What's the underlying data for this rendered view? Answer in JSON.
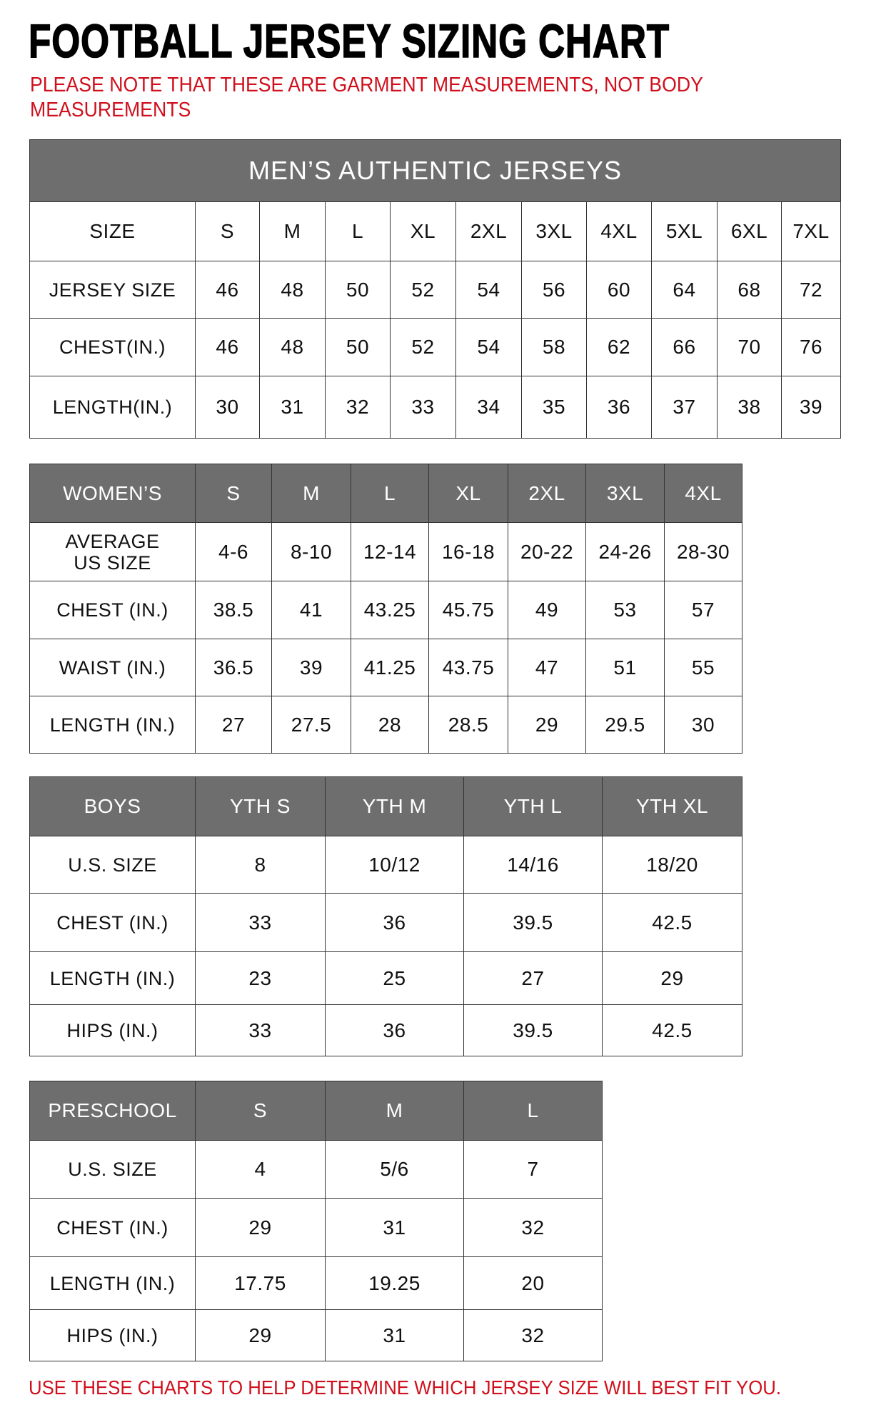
{
  "title": "FOOTBALL JERSEY SIZING CHART",
  "note": "PLEASE NOTE THAT THESE ARE GARMENT MEASUREMENTS, NOT BODY MEASUREMENTS",
  "footer": "USE THESE CHARTS TO HELP DETERMINE WHICH JERSEY SIZE WILL BEST FIT YOU.",
  "colors": {
    "header_gray": "#6e6e6e",
    "note_red": "#d0101c"
  },
  "mens": {
    "banner": "MEN’S AUTHENTIC JERSEYS",
    "header": [
      "SIZE",
      "S",
      "M",
      "L",
      "XL",
      "2XL",
      "3XL",
      "4XL",
      "5XL",
      "6XL",
      "7XL"
    ],
    "rows": [
      [
        "JERSEY SIZE",
        "46",
        "48",
        "50",
        "52",
        "54",
        "56",
        "60",
        "64",
        "68",
        "72"
      ],
      [
        "CHEST(IN.)",
        "46",
        "48",
        "50",
        "52",
        "54",
        "58",
        "62",
        "66",
        "70",
        "76"
      ],
      [
        "LENGTH(IN.)",
        "30",
        "31",
        "32",
        "33",
        "34",
        "35",
        "36",
        "37",
        "38",
        "39"
      ]
    ]
  },
  "womens": {
    "header": [
      "WOMEN’S",
      "S",
      "M",
      "L",
      "XL",
      "2XL",
      "3XL",
      "4XL"
    ],
    "rows": [
      [
        "AVERAGE US SIZE",
        "4-6",
        "8-10",
        "12-14",
        "16-18",
        "20-22",
        "24-26",
        "28-30"
      ],
      [
        "CHEST (IN.)",
        "38.5",
        "41",
        "43.25",
        "45.75",
        "49",
        "53",
        "57"
      ],
      [
        "WAIST (IN.)",
        "36.5",
        "39",
        "41.25",
        "43.75",
        "47",
        "51",
        "55"
      ],
      [
        "LENGTH (IN.)",
        "27",
        "27.5",
        "28",
        "28.5",
        "29",
        "29.5",
        "30"
      ]
    ]
  },
  "boys": {
    "header": [
      "BOYS",
      "YTH S",
      "YTH M",
      "YTH L",
      "YTH XL"
    ],
    "rows": [
      [
        "U.S. SIZE",
        "8",
        "10/12",
        "14/16",
        "18/20"
      ],
      [
        "CHEST (IN.)",
        "33",
        "36",
        "39.5",
        "42.5"
      ],
      [
        "LENGTH (IN.)",
        "23",
        "25",
        "27",
        "29"
      ],
      [
        "HIPS (IN.)",
        "33",
        "36",
        "39.5",
        "42.5"
      ]
    ]
  },
  "preschool": {
    "header": [
      "PRESCHOOL",
      "S",
      "M",
      "L"
    ],
    "rows": [
      [
        "U.S. SIZE",
        "4",
        "5/6",
        "7"
      ],
      [
        "CHEST (IN.)",
        "29",
        "31",
        "32"
      ],
      [
        "LENGTH (IN.)",
        "17.75",
        "19.25",
        "20"
      ],
      [
        "HIPS (IN.)",
        "29",
        "31",
        "32"
      ]
    ]
  }
}
